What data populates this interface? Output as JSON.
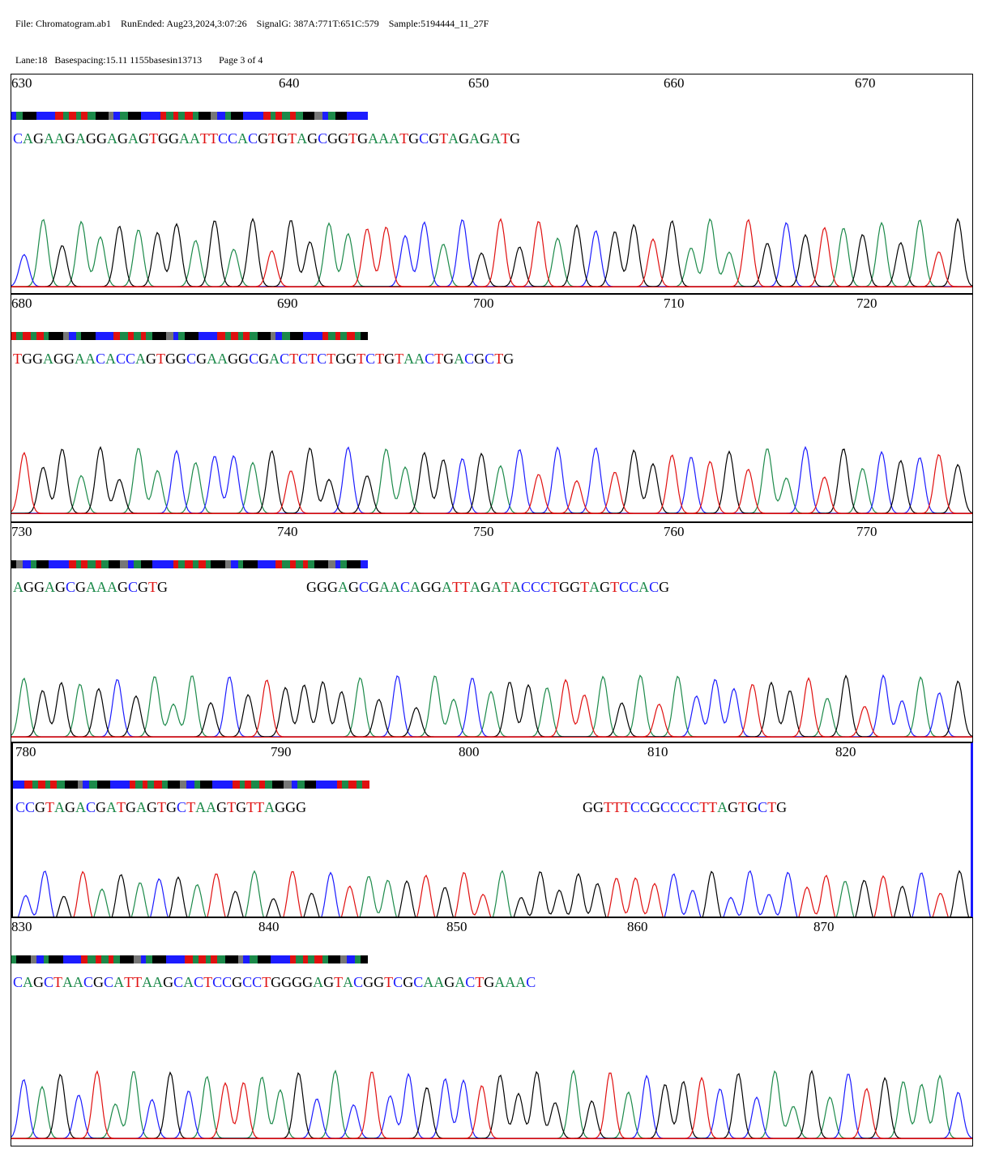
{
  "header": {
    "file": "File: Chromatogram.ab1",
    "run_ended": "RunEnded: Aug23,2024,3:07:26",
    "signal": "SignalG: 387A:771T:651C:579",
    "sample": "Sample:5194444_11_27F",
    "lane": "Lane:18",
    "basespacing": "Basespacing:15.11 1155basesin13713",
    "page": "Page 3 of 4"
  },
  "colors": {
    "A": "#1c8a4a",
    "C": "#1c1cff",
    "G": "#000000",
    "T": "#e01010"
  },
  "chart_data": {
    "type": "line",
    "description_axis": "base position",
    "panels": [
      {
        "ticks": [
          "630",
          "640",
          "650",
          "660",
          "670"
        ],
        "segments": [
          "CAGAAGAGGAGAGTGGAATTCCACGTGTAGCGGTGAAATGCGTAGAGATG"
        ]
      },
      {
        "ticks": [
          "680",
          "690",
          "700",
          "710",
          "720"
        ],
        "segments": [
          "TGGAGGAACACCAGTGGCGAAGGCGACTCTCTGGTCTGTAACTGACGCTG"
        ]
      },
      {
        "ticks": [
          "730",
          "740",
          "750",
          "760",
          "770"
        ],
        "segments": [
          "AGGAGCGAAAGCGTG",
          "GGGAGCGAACAGGATTAGATACCCTGGTAGTCCACG"
        ]
      },
      {
        "ticks": [
          "780",
          "790",
          "800",
          "810",
          "820"
        ],
        "segments": [
          "CCGTAGACGATGAGTGCTAAGTGTTAGGG",
          "GGTTTCCGCCCCTTAGTGCTG"
        ]
      },
      {
        "ticks": [
          "830",
          "840",
          "850",
          "860",
          "870"
        ],
        "segments": [
          "CAGCTAACGCATTAAGCACTCCGCCTGGGGAGTACGGTCGCAAGACTGAAAC"
        ]
      }
    ]
  }
}
